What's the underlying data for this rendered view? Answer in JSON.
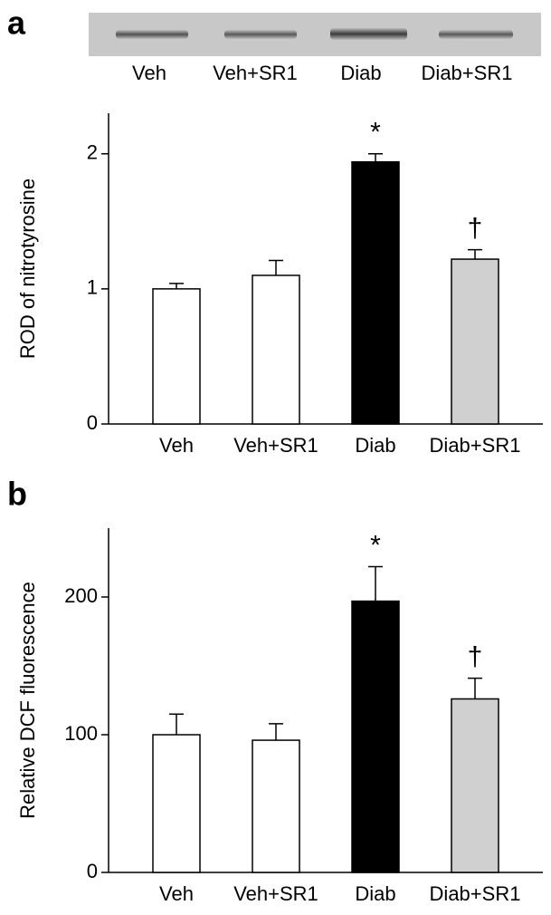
{
  "chart_data": [
    {
      "type": "bar",
      "panel_label": "a",
      "blot_labels": [
        "Veh",
        "Veh+SR1",
        "Diab",
        "Diab+SR1"
      ],
      "y_label": "ROD of nitrotyrosine",
      "categories": [
        "Veh",
        "Veh+SR1",
        "Diab",
        "Diab+SR1"
      ],
      "values": [
        1.0,
        1.1,
        1.94,
        1.22
      ],
      "errors": [
        0.04,
        0.11,
        0.06,
        0.07
      ],
      "colors": [
        "#ffffff",
        "#ffffff",
        "#000000",
        "#d0d0d0"
      ],
      "bar_annotations": [
        null,
        null,
        "*",
        "†"
      ],
      "ylim": [
        0,
        2.3
      ],
      "yticks": [
        0,
        1,
        2
      ]
    },
    {
      "type": "bar",
      "panel_label": "b",
      "y_label": "Relative DCF fluorescence",
      "categories": [
        "Veh",
        "Veh+SR1",
        "Diab",
        "Diab+SR1"
      ],
      "values": [
        100,
        96,
        197,
        126
      ],
      "errors": [
        15,
        12,
        25,
        15
      ],
      "colors": [
        "#ffffff",
        "#ffffff",
        "#000000",
        "#d0d0d0"
      ],
      "bar_annotations": [
        null,
        null,
        "*",
        "†"
      ],
      "ylim": [
        0,
        250
      ],
      "yticks": [
        0,
        100,
        200
      ]
    }
  ]
}
